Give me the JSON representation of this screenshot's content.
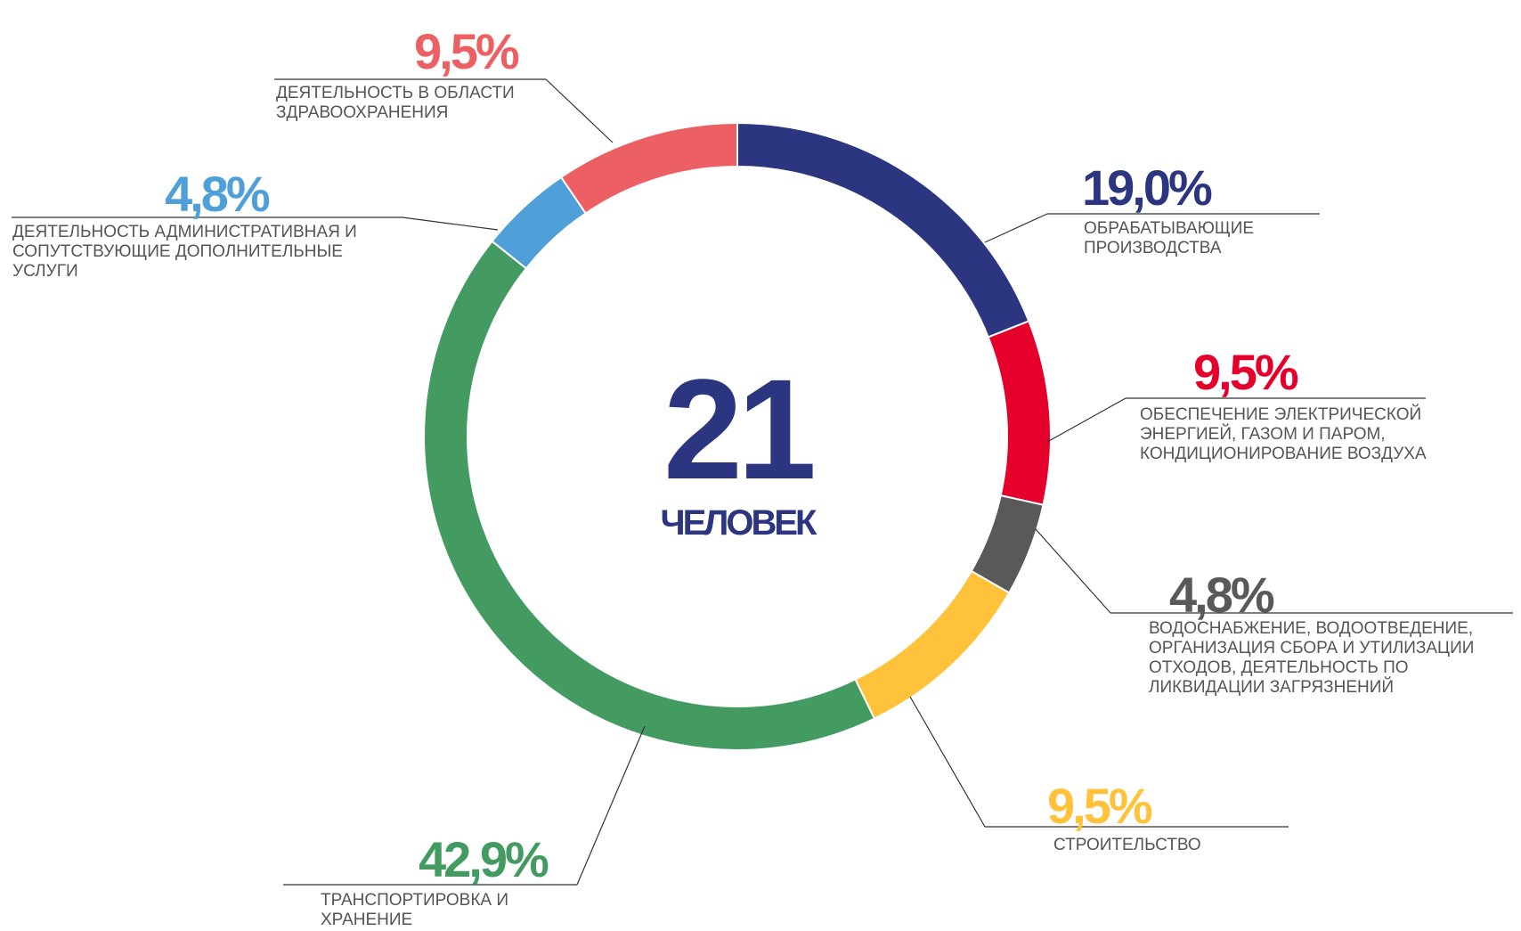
{
  "chart_data": {
    "type": "pie",
    "donut": true,
    "center_value": "21",
    "center_label": "ЧЕЛОВЕК",
    "categories": [
      "ОБРАБАТЫВАЮЩИЕ ПРОИЗВОДСТВА",
      "ОБЕСПЕЧЕНИЕ ЭЛЕКТРИЧЕСКОЙ ЭНЕРГИЕЙ, ГАЗОМ И ПАРОМ, КОНДИЦИОНИРОВАНИЕ ВОЗДУХА",
      "ВОДОСНАБЖЕНИЕ, ВОДООТВЕДЕНИЕ, ОРГАНИЗАЦИЯ СБОРА И УТИЛИЗАЦИИ ОТХОДОВ, ДЕЯТЕЛЬНОСТЬ ПО ЛИКВИДАЦИИ ЗАГРЯЗНЕНИЙ",
      "СТРОИТЕЛЬСТВО",
      "ТРАНСПОРТИРОВКА И ХРАНЕНИЕ",
      "ДЕЯТЕЛЬНОСТЬ АДМИНИСТРАТИВНАЯ И СОПУТСТВУЮЩИЕ ДОПОЛНИТЕЛЬНЫЕ УСЛУГИ",
      "ДЕЯТЕЛЬНОСТЬ В ОБЛАСТИ ЗДРАВООХРАНЕНИЯ"
    ],
    "values": [
      19.0,
      9.5,
      4.8,
      9.5,
      42.9,
      4.8,
      9.5
    ],
    "value_labels": [
      "19,0%",
      "9,5%",
      "4,8%",
      "9,5%",
      "42,9%",
      "4,8%",
      "9,5%"
    ],
    "colors": [
      "#2b3580",
      "#e4002b",
      "#595959",
      "#ffc23a",
      "#449b62",
      "#4f9fd8",
      "#ec5f62"
    ]
  }
}
